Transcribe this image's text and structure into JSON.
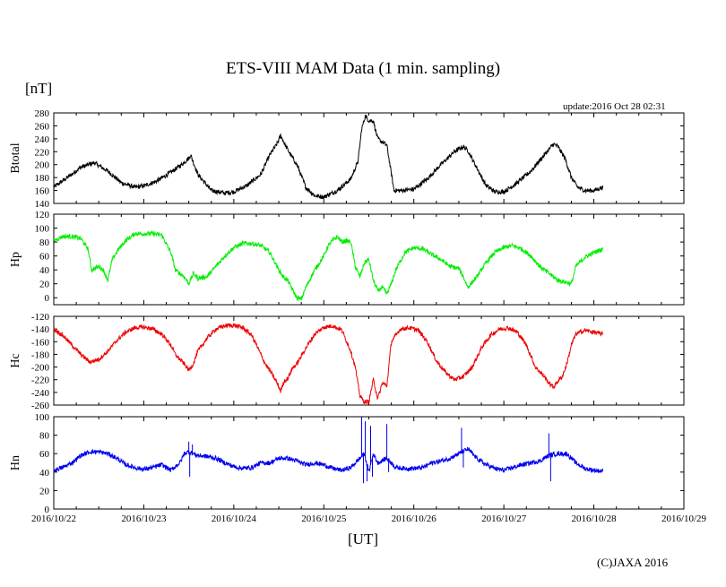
{
  "title": "ETS-VIII MAM Data (1 min. sampling)",
  "unit_label": "[nT]",
  "update_text": "update:2016 Oct 28 02:31",
  "x_axis_label": "[UT]",
  "copyright": "(C)JAXA 2016",
  "chart_data": {
    "type": "line",
    "x_ticks": [
      "2016/10/22",
      "2016/10/23",
      "2016/10/24",
      "2016/10/25",
      "2016/10/26",
      "2016/10/27",
      "2016/10/28",
      "2016/10/29"
    ],
    "x_range_days": [
      0,
      7
    ],
    "panels": [
      {
        "name": "Btotal",
        "ylabel": "Btotal",
        "color": "#000000",
        "ylim": [
          140,
          280
        ],
        "yticks": [
          140,
          160,
          180,
          200,
          220,
          240,
          260,
          280
        ],
        "noise": 2.5,
        "points": [
          [
            0,
            165
          ],
          [
            0.15,
            180
          ],
          [
            0.3,
            196
          ],
          [
            0.45,
            203
          ],
          [
            0.6,
            190
          ],
          [
            0.75,
            172
          ],
          [
            0.9,
            165
          ],
          [
            1.0,
            167
          ],
          [
            1.15,
            175
          ],
          [
            1.3,
            188
          ],
          [
            1.42,
            200
          ],
          [
            1.5,
            210
          ],
          [
            1.52,
            215
          ],
          [
            1.6,
            185
          ],
          [
            1.75,
            160
          ],
          [
            1.9,
            156
          ],
          [
            2.0,
            158
          ],
          [
            2.15,
            168
          ],
          [
            2.3,
            185
          ],
          [
            2.4,
            215
          ],
          [
            2.48,
            232
          ],
          [
            2.52,
            245
          ],
          [
            2.58,
            228
          ],
          [
            2.62,
            218
          ],
          [
            2.7,
            200
          ],
          [
            2.8,
            165
          ],
          [
            2.9,
            152
          ],
          [
            3.0,
            150
          ],
          [
            3.15,
            160
          ],
          [
            3.3,
            178
          ],
          [
            3.38,
            205
          ],
          [
            3.42,
            255
          ],
          [
            3.46,
            275
          ],
          [
            3.5,
            268
          ],
          [
            3.55,
            268
          ],
          [
            3.58,
            250
          ],
          [
            3.6,
            240
          ],
          [
            3.7,
            230
          ],
          [
            3.78,
            160
          ],
          [
            3.85,
            160
          ],
          [
            4.0,
            162
          ],
          [
            4.15,
            178
          ],
          [
            4.3,
            200
          ],
          [
            4.45,
            220
          ],
          [
            4.55,
            228
          ],
          [
            4.6,
            222
          ],
          [
            4.7,
            195
          ],
          [
            4.8,
            168
          ],
          [
            4.9,
            158
          ],
          [
            5.0,
            158
          ],
          [
            5.15,
            172
          ],
          [
            5.3,
            190
          ],
          [
            5.45,
            215
          ],
          [
            5.55,
            232
          ],
          [
            5.6,
            228
          ],
          [
            5.68,
            210
          ],
          [
            5.75,
            180
          ],
          [
            5.82,
            165
          ],
          [
            5.9,
            160
          ],
          [
            6.0,
            160
          ],
          [
            6.1,
            165
          ]
        ]
      },
      {
        "name": "Hp",
        "ylabel": "Hp",
        "color": "#00ee00",
        "ylim": [
          -10,
          120
        ],
        "yticks": [
          0,
          20,
          40,
          60,
          80,
          100,
          120
        ],
        "noise": 2.5,
        "points": [
          [
            0,
            82
          ],
          [
            0.1,
            88
          ],
          [
            0.2,
            88
          ],
          [
            0.3,
            85
          ],
          [
            0.38,
            70
          ],
          [
            0.42,
            40
          ],
          [
            0.5,
            45
          ],
          [
            0.55,
            40
          ],
          [
            0.6,
            25
          ],
          [
            0.65,
            55
          ],
          [
            0.72,
            70
          ],
          [
            0.8,
            82
          ],
          [
            0.9,
            92
          ],
          [
            1.0,
            92
          ],
          [
            1.1,
            92
          ],
          [
            1.2,
            90
          ],
          [
            1.3,
            65
          ],
          [
            1.35,
            40
          ],
          [
            1.45,
            30
          ],
          [
            1.5,
            20
          ],
          [
            1.55,
            35
          ],
          [
            1.6,
            28
          ],
          [
            1.7,
            30
          ],
          [
            1.8,
            45
          ],
          [
            1.9,
            60
          ],
          [
            2.0,
            72
          ],
          [
            2.1,
            78
          ],
          [
            2.2,
            78
          ],
          [
            2.3,
            75
          ],
          [
            2.4,
            65
          ],
          [
            2.5,
            40
          ],
          [
            2.55,
            30
          ],
          [
            2.6,
            25
          ],
          [
            2.65,
            12
          ],
          [
            2.7,
            0
          ],
          [
            2.75,
            -2
          ],
          [
            2.8,
            15
          ],
          [
            2.9,
            40
          ],
          [
            3.0,
            60
          ],
          [
            3.05,
            75
          ],
          [
            3.1,
            82
          ],
          [
            3.15,
            88
          ],
          [
            3.2,
            80
          ],
          [
            3.25,
            82
          ],
          [
            3.3,
            80
          ],
          [
            3.35,
            45
          ],
          [
            3.4,
            30
          ],
          [
            3.45,
            50
          ],
          [
            3.5,
            55
          ],
          [
            3.55,
            25
          ],
          [
            3.6,
            10
          ],
          [
            3.65,
            15
          ],
          [
            3.7,
            5
          ],
          [
            3.75,
            20
          ],
          [
            3.8,
            40
          ],
          [
            3.9,
            65
          ],
          [
            4.0,
            72
          ],
          [
            4.1,
            70
          ],
          [
            4.2,
            62
          ],
          [
            4.3,
            55
          ],
          [
            4.4,
            45
          ],
          [
            4.5,
            42
          ],
          [
            4.55,
            30
          ],
          [
            4.6,
            15
          ],
          [
            4.7,
            30
          ],
          [
            4.8,
            50
          ],
          [
            4.9,
            65
          ],
          [
            5.0,
            72
          ],
          [
            5.1,
            75
          ],
          [
            5.2,
            70
          ],
          [
            5.3,
            60
          ],
          [
            5.4,
            45
          ],
          [
            5.5,
            35
          ],
          [
            5.6,
            25
          ],
          [
            5.7,
            22
          ],
          [
            5.75,
            20
          ],
          [
            5.8,
            45
          ],
          [
            5.9,
            58
          ],
          [
            6.0,
            65
          ],
          [
            6.1,
            70
          ]
        ]
      },
      {
        "name": "Hc",
        "ylabel": "Hc",
        "color": "#ee0000",
        "ylim": [
          -260,
          -120
        ],
        "yticks": [
          -260,
          -240,
          -220,
          -200,
          -180,
          -160,
          -140,
          -120
        ],
        "noise": 2.5,
        "points": [
          [
            0,
            -140
          ],
          [
            0.1,
            -150
          ],
          [
            0.2,
            -165
          ],
          [
            0.3,
            -180
          ],
          [
            0.4,
            -192
          ],
          [
            0.5,
            -188
          ],
          [
            0.6,
            -175
          ],
          [
            0.7,
            -158
          ],
          [
            0.8,
            -145
          ],
          [
            0.9,
            -138
          ],
          [
            1.0,
            -137
          ],
          [
            1.1,
            -140
          ],
          [
            1.2,
            -148
          ],
          [
            1.3,
            -165
          ],
          [
            1.35,
            -180
          ],
          [
            1.4,
            -188
          ],
          [
            1.45,
            -195
          ],
          [
            1.5,
            -205
          ],
          [
            1.55,
            -195
          ],
          [
            1.6,
            -175
          ],
          [
            1.7,
            -155
          ],
          [
            1.8,
            -140
          ],
          [
            1.9,
            -135
          ],
          [
            2.0,
            -134
          ],
          [
            2.1,
            -138
          ],
          [
            2.2,
            -150
          ],
          [
            2.3,
            -180
          ],
          [
            2.35,
            -195
          ],
          [
            2.42,
            -210
          ],
          [
            2.48,
            -225
          ],
          [
            2.52,
            -238
          ],
          [
            2.56,
            -222
          ],
          [
            2.6,
            -218
          ],
          [
            2.65,
            -202
          ],
          [
            2.7,
            -195
          ],
          [
            2.8,
            -170
          ],
          [
            2.9,
            -148
          ],
          [
            3.0,
            -137
          ],
          [
            3.1,
            -135
          ],
          [
            3.2,
            -142
          ],
          [
            3.3,
            -175
          ],
          [
            3.35,
            -200
          ],
          [
            3.4,
            -245
          ],
          [
            3.45,
            -255
          ],
          [
            3.5,
            -255
          ],
          [
            3.55,
            -220
          ],
          [
            3.6,
            -250
          ],
          [
            3.65,
            -225
          ],
          [
            3.7,
            -230
          ],
          [
            3.75,
            -160
          ],
          [
            3.85,
            -140
          ],
          [
            3.95,
            -138
          ],
          [
            4.05,
            -142
          ],
          [
            4.15,
            -160
          ],
          [
            4.25,
            -190
          ],
          [
            4.35,
            -208
          ],
          [
            4.45,
            -220
          ],
          [
            4.55,
            -215
          ],
          [
            4.65,
            -200
          ],
          [
            4.75,
            -170
          ],
          [
            4.85,
            -150
          ],
          [
            4.95,
            -140
          ],
          [
            5.05,
            -138
          ],
          [
            5.15,
            -145
          ],
          [
            5.25,
            -165
          ],
          [
            5.35,
            -200
          ],
          [
            5.45,
            -215
          ],
          [
            5.5,
            -225
          ],
          [
            5.55,
            -232
          ],
          [
            5.6,
            -222
          ],
          [
            5.65,
            -215
          ],
          [
            5.7,
            -195
          ],
          [
            5.75,
            -165
          ],
          [
            5.8,
            -148
          ],
          [
            5.9,
            -142
          ],
          [
            6.0,
            -145
          ],
          [
            6.1,
            -148
          ]
        ]
      },
      {
        "name": "Hn",
        "ylabel": "Hn",
        "color": "#0000ee",
        "ylim": [
          0,
          100
        ],
        "yticks": [
          0,
          20,
          40,
          60,
          80,
          100
        ],
        "noise": 2.5,
        "points": [
          [
            0,
            42
          ],
          [
            0.1,
            45
          ],
          [
            0.2,
            50
          ],
          [
            0.3,
            58
          ],
          [
            0.4,
            62
          ],
          [
            0.5,
            62
          ],
          [
            0.6,
            60
          ],
          [
            0.7,
            55
          ],
          [
            0.8,
            48
          ],
          [
            0.9,
            45
          ],
          [
            1.0,
            43
          ],
          [
            1.1,
            45
          ],
          [
            1.2,
            48
          ],
          [
            1.3,
            42
          ],
          [
            1.4,
            50
          ],
          [
            1.45,
            60
          ],
          [
            1.5,
            62
          ],
          [
            1.6,
            58
          ],
          [
            1.7,
            57
          ],
          [
            1.8,
            55
          ],
          [
            1.9,
            50
          ],
          [
            2.0,
            46
          ],
          [
            2.1,
            44
          ],
          [
            2.2,
            45
          ],
          [
            2.3,
            50
          ],
          [
            2.4,
            50
          ],
          [
            2.5,
            55
          ],
          [
            2.6,
            55
          ],
          [
            2.7,
            52
          ],
          [
            2.8,
            48
          ],
          [
            2.9,
            50
          ],
          [
            3.0,
            48
          ],
          [
            3.1,
            44
          ],
          [
            3.2,
            42
          ],
          [
            3.3,
            45
          ],
          [
            3.4,
            55
          ],
          [
            3.45,
            60
          ],
          [
            3.5,
            40
          ],
          [
            3.55,
            60
          ],
          [
            3.6,
            50
          ],
          [
            3.7,
            55
          ],
          [
            3.8,
            45
          ],
          [
            3.9,
            44
          ],
          [
            4.0,
            44
          ],
          [
            4.1,
            45
          ],
          [
            4.2,
            50
          ],
          [
            4.3,
            52
          ],
          [
            4.4,
            55
          ],
          [
            4.5,
            60
          ],
          [
            4.6,
            65
          ],
          [
            4.7,
            55
          ],
          [
            4.8,
            48
          ],
          [
            4.9,
            44
          ],
          [
            5.0,
            42
          ],
          [
            5.1,
            45
          ],
          [
            5.2,
            48
          ],
          [
            5.3,
            50
          ],
          [
            5.4,
            52
          ],
          [
            5.5,
            58
          ],
          [
            5.6,
            60
          ],
          [
            5.7,
            60
          ],
          [
            5.8,
            50
          ],
          [
            5.9,
            44
          ],
          [
            6.0,
            42
          ],
          [
            6.1,
            41
          ]
        ],
        "spikes": [
          [
            1.5,
            73
          ],
          [
            1.51,
            35
          ],
          [
            1.54,
            70
          ],
          [
            3.42,
            100
          ],
          [
            3.44,
            28
          ],
          [
            3.46,
            95
          ],
          [
            3.48,
            30
          ],
          [
            3.52,
            90
          ],
          [
            3.54,
            35
          ],
          [
            3.7,
            92
          ],
          [
            3.72,
            40
          ],
          [
            4.53,
            88
          ],
          [
            4.55,
            45
          ],
          [
            5.5,
            82
          ],
          [
            5.52,
            30
          ]
        ]
      }
    ]
  }
}
